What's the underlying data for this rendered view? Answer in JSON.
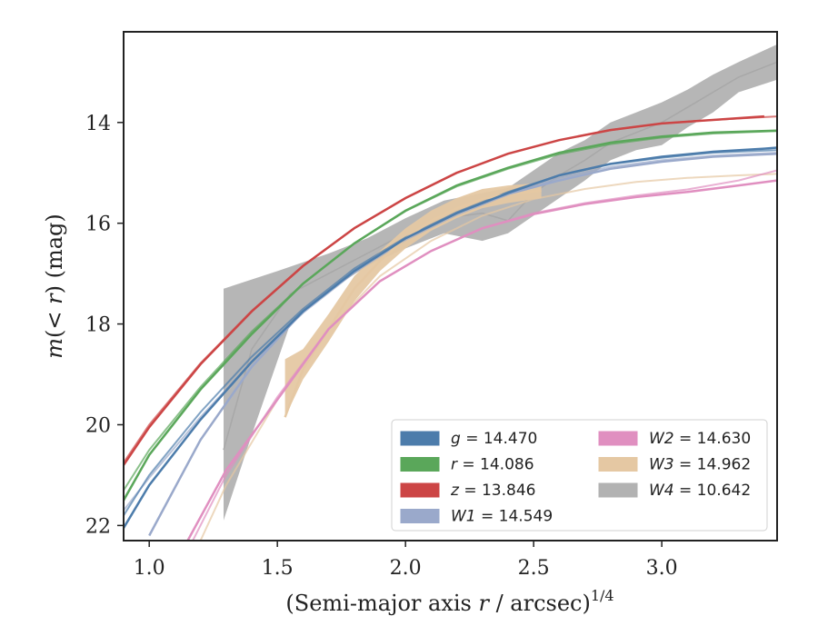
{
  "chart_data": {
    "type": "line",
    "xlabel": "(Semi-major axis r / arcsec)1/4",
    "xlabel_parts": {
      "prefix": "(Semi-major axis ",
      "var": "r",
      "middle": " / arcsec)",
      "sup": "1/4"
    },
    "ylabel": "m(< r) (mag)",
    "ylabel_parts": {
      "m": "m",
      "inner": "(< ",
      "r": "r",
      "close": ")",
      "unit": " (mag)"
    },
    "xlim": [
      0.9,
      3.45
    ],
    "ylim": [
      22.3,
      12.2
    ],
    "y_inverted": true,
    "xticks": [
      1.0,
      1.5,
      2.0,
      2.5,
      3.0
    ],
    "xtick_labels": [
      "1.0",
      "1.5",
      "2.0",
      "2.5",
      "3.0"
    ],
    "yticks": [
      14,
      16,
      18,
      20,
      22
    ],
    "ytick_labels": [
      "14",
      "16",
      "18",
      "20",
      "22"
    ],
    "grid": false,
    "legend_position": "lower-right",
    "series": [
      {
        "name": "g = 14.470",
        "band": "g",
        "value": "14.470",
        "color": "#4c7cab",
        "data": [
          [
            0.9,
            22.05
          ],
          [
            1.0,
            21.2
          ],
          [
            1.2,
            19.9
          ],
          [
            1.4,
            18.75
          ],
          [
            1.6,
            17.75
          ],
          [
            1.8,
            16.95
          ],
          [
            2.0,
            16.3
          ],
          [
            2.2,
            15.8
          ],
          [
            2.4,
            15.4
          ],
          [
            2.6,
            15.05
          ],
          [
            2.8,
            14.82
          ],
          [
            3.0,
            14.68
          ],
          [
            3.2,
            14.58
          ],
          [
            3.4,
            14.52
          ],
          [
            3.45,
            14.5
          ]
        ],
        "model": [
          [
            0.9,
            21.8
          ],
          [
            1.0,
            21.0
          ],
          [
            1.2,
            19.75
          ],
          [
            1.4,
            18.65
          ],
          [
            1.6,
            17.7
          ],
          [
            1.8,
            16.9
          ],
          [
            2.0,
            16.28
          ],
          [
            2.2,
            15.78
          ],
          [
            2.4,
            15.38
          ],
          [
            2.6,
            15.05
          ],
          [
            2.8,
            14.83
          ],
          [
            3.0,
            14.7
          ],
          [
            3.2,
            14.6
          ],
          [
            3.45,
            14.55
          ]
        ]
      },
      {
        "name": "r = 14.086",
        "band": "r",
        "value": "14.086",
        "color": "#5aa75a",
        "data": [
          [
            0.9,
            21.5
          ],
          [
            1.0,
            20.6
          ],
          [
            1.2,
            19.3
          ],
          [
            1.4,
            18.2
          ],
          [
            1.6,
            17.2
          ],
          [
            1.8,
            16.4
          ],
          [
            2.0,
            15.75
          ],
          [
            2.2,
            15.25
          ],
          [
            2.4,
            14.9
          ],
          [
            2.6,
            14.6
          ],
          [
            2.8,
            14.4
          ],
          [
            3.0,
            14.28
          ],
          [
            3.2,
            14.2
          ],
          [
            3.45,
            14.16
          ]
        ],
        "model": [
          [
            0.9,
            21.3
          ],
          [
            1.0,
            20.5
          ],
          [
            1.2,
            19.25
          ],
          [
            1.4,
            18.15
          ],
          [
            1.6,
            17.2
          ],
          [
            1.8,
            16.4
          ],
          [
            2.0,
            15.76
          ],
          [
            2.2,
            15.27
          ],
          [
            2.4,
            14.92
          ],
          [
            2.6,
            14.63
          ],
          [
            2.8,
            14.43
          ],
          [
            3.0,
            14.3
          ],
          [
            3.2,
            14.22
          ],
          [
            3.45,
            14.17
          ]
        ]
      },
      {
        "name": "z = 13.846",
        "band": "z",
        "value": "13.846",
        "color": "#cc4545",
        "data": [
          [
            0.9,
            20.8
          ],
          [
            1.0,
            20.05
          ],
          [
            1.2,
            18.8
          ],
          [
            1.4,
            17.75
          ],
          [
            1.6,
            16.85
          ],
          [
            1.8,
            16.1
          ],
          [
            2.0,
            15.5
          ],
          [
            2.2,
            15.0
          ],
          [
            2.4,
            14.62
          ],
          [
            2.6,
            14.35
          ],
          [
            2.8,
            14.15
          ],
          [
            3.0,
            14.02
          ],
          [
            3.2,
            13.95
          ],
          [
            3.4,
            13.88
          ]
        ],
        "model": [
          [
            0.9,
            20.75
          ],
          [
            1.0,
            20.0
          ],
          [
            1.2,
            18.78
          ],
          [
            1.4,
            17.74
          ],
          [
            1.6,
            16.84
          ],
          [
            1.8,
            16.1
          ],
          [
            2.0,
            15.5
          ],
          [
            2.2,
            15.0
          ],
          [
            2.4,
            14.62
          ],
          [
            2.6,
            14.35
          ],
          [
            2.8,
            14.15
          ],
          [
            3.0,
            14.02
          ],
          [
            3.2,
            13.95
          ],
          [
            3.45,
            13.88
          ]
        ]
      },
      {
        "name": "W1 = 14.549",
        "band": "W1",
        "value": "14.549",
        "color": "#9aa9cb",
        "data": [
          [
            1.0,
            22.2
          ],
          [
            1.2,
            20.3
          ],
          [
            1.4,
            18.85
          ],
          [
            1.6,
            17.75
          ],
          [
            1.8,
            16.95
          ],
          [
            2.0,
            16.3
          ],
          [
            2.2,
            15.8
          ],
          [
            2.4,
            15.42
          ],
          [
            2.6,
            15.15
          ],
          [
            2.8,
            14.92
          ],
          [
            3.0,
            14.78
          ],
          [
            3.2,
            14.68
          ],
          [
            3.45,
            14.62
          ]
        ],
        "model": [
          [
            0.9,
            21.7
          ],
          [
            1.0,
            21.05
          ],
          [
            1.2,
            19.85
          ],
          [
            1.4,
            18.75
          ],
          [
            1.6,
            17.78
          ],
          [
            1.8,
            16.98
          ],
          [
            2.0,
            16.33
          ],
          [
            2.2,
            15.83
          ],
          [
            2.4,
            15.43
          ],
          [
            2.6,
            15.1
          ],
          [
            2.8,
            14.88
          ],
          [
            3.0,
            14.75
          ],
          [
            3.2,
            14.66
          ],
          [
            3.45,
            14.6
          ]
        ]
      },
      {
        "name": "W2 = 14.630",
        "band": "W2",
        "value": "14.630",
        "color": "#e08fc0",
        "data": [
          [
            1.15,
            22.3
          ],
          [
            1.3,
            20.9
          ],
          [
            1.5,
            19.5
          ],
          [
            1.7,
            18.1
          ],
          [
            1.9,
            17.15
          ],
          [
            2.1,
            16.55
          ],
          [
            2.3,
            16.1
          ],
          [
            2.5,
            15.82
          ],
          [
            2.7,
            15.62
          ],
          [
            2.9,
            15.48
          ],
          [
            3.1,
            15.38
          ],
          [
            3.3,
            15.25
          ],
          [
            3.45,
            15.15
          ]
        ],
        "model": [
          [
            1.17,
            22.3
          ],
          [
            1.3,
            21.0
          ],
          [
            1.5,
            19.45
          ],
          [
            1.7,
            18.1
          ],
          [
            1.9,
            17.15
          ],
          [
            2.1,
            16.55
          ],
          [
            2.3,
            16.1
          ],
          [
            2.5,
            15.8
          ],
          [
            2.7,
            15.6
          ],
          [
            2.9,
            15.45
          ],
          [
            3.1,
            15.33
          ],
          [
            3.3,
            15.15
          ],
          [
            3.45,
            14.95
          ]
        ]
      },
      {
        "name": "W3 = 14.962",
        "band": "W3",
        "value": "14.962",
        "color": "#e5c8a3",
        "data": [
          [
            1.53,
            19.85
          ],
          [
            1.6,
            18.9
          ],
          [
            1.7,
            18.1
          ],
          [
            1.8,
            17.3
          ],
          [
            1.9,
            16.75
          ],
          [
            2.0,
            16.3
          ],
          [
            2.1,
            15.95
          ],
          [
            2.2,
            15.7
          ],
          [
            2.3,
            15.52
          ],
          [
            2.4,
            15.42
          ],
          [
            2.53,
            15.35
          ]
        ],
        "model": [
          [
            1.2,
            22.3
          ],
          [
            1.3,
            21.2
          ],
          [
            1.5,
            19.5
          ],
          [
            1.7,
            18.1
          ],
          [
            1.9,
            17.05
          ],
          [
            2.1,
            16.35
          ],
          [
            2.3,
            15.85
          ],
          [
            2.5,
            15.52
          ],
          [
            2.7,
            15.32
          ],
          [
            2.9,
            15.18
          ],
          [
            3.1,
            15.1
          ],
          [
            3.3,
            15.05
          ],
          [
            3.45,
            15.02
          ]
        ]
      },
      {
        "name": "W4 = 10.642",
        "band": "W4",
        "value": "10.642",
        "color": "#b2b2b2",
        "data": [
          [
            1.29,
            20.5
          ],
          [
            1.4,
            18.5
          ],
          [
            1.55,
            17.4
          ],
          [
            1.7,
            17.0
          ],
          [
            1.85,
            16.6
          ],
          [
            2.0,
            16.2
          ],
          [
            2.15,
            15.9
          ],
          [
            2.3,
            15.8
          ],
          [
            2.4,
            15.95
          ],
          [
            2.5,
            15.4
          ],
          [
            2.6,
            15.05
          ],
          [
            2.7,
            14.75
          ],
          [
            2.8,
            14.4
          ],
          [
            2.9,
            14.2
          ],
          [
            3.0,
            14.0
          ],
          [
            3.1,
            13.7
          ],
          [
            3.2,
            13.4
          ],
          [
            3.3,
            13.1
          ],
          [
            3.45,
            12.8
          ]
        ],
        "upper": [
          [
            1.29,
            17.3
          ],
          [
            1.5,
            16.95
          ],
          [
            1.7,
            16.6
          ],
          [
            1.85,
            16.3
          ],
          [
            2.0,
            15.9
          ],
          [
            2.15,
            15.55
          ],
          [
            2.3,
            15.4
          ],
          [
            2.4,
            15.3
          ],
          [
            2.5,
            14.95
          ],
          [
            2.6,
            14.6
          ],
          [
            2.7,
            14.35
          ],
          [
            2.8,
            14.0
          ],
          [
            2.9,
            13.8
          ],
          [
            3.0,
            13.6
          ],
          [
            3.1,
            13.35
          ],
          [
            3.2,
            13.05
          ],
          [
            3.3,
            12.8
          ],
          [
            3.45,
            12.45
          ]
        ],
        "lower": [
          [
            1.29,
            21.9
          ],
          [
            1.4,
            20.2
          ],
          [
            1.55,
            18.0
          ],
          [
            1.7,
            17.35
          ],
          [
            1.85,
            16.85
          ],
          [
            2.0,
            16.5
          ],
          [
            2.15,
            16.2
          ],
          [
            2.3,
            16.35
          ],
          [
            2.4,
            16.2
          ],
          [
            2.5,
            15.85
          ],
          [
            2.6,
            15.5
          ],
          [
            2.7,
            15.15
          ],
          [
            2.8,
            14.75
          ],
          [
            2.9,
            14.55
          ],
          [
            3.0,
            14.45
          ],
          [
            3.1,
            14.1
          ],
          [
            3.2,
            13.8
          ],
          [
            3.3,
            13.4
          ],
          [
            3.45,
            13.15
          ]
        ]
      }
    ],
    "band_extents": {
      "W3": {
        "upper": [
          [
            1.53,
            18.7
          ],
          [
            1.6,
            18.5
          ],
          [
            1.7,
            17.8
          ],
          [
            1.8,
            17.05
          ],
          [
            1.9,
            16.55
          ],
          [
            2.0,
            16.1
          ],
          [
            2.1,
            15.75
          ],
          [
            2.2,
            15.5
          ],
          [
            2.3,
            15.32
          ],
          [
            2.4,
            15.25
          ],
          [
            2.53,
            15.2
          ]
        ],
        "lower": [
          [
            1.53,
            19.85
          ],
          [
            1.6,
            19.1
          ],
          [
            1.7,
            18.35
          ],
          [
            1.8,
            17.55
          ],
          [
            1.9,
            16.95
          ],
          [
            2.0,
            16.5
          ],
          [
            2.1,
            16.15
          ],
          [
            2.2,
            15.9
          ],
          [
            2.3,
            15.7
          ],
          [
            2.4,
            15.6
          ],
          [
            2.53,
            15.5
          ]
        ]
      }
    },
    "legend": {
      "columns": [
        [
          "g",
          "r",
          "z",
          "W1"
        ],
        [
          "W2",
          "W3",
          "W4"
        ]
      ]
    }
  }
}
